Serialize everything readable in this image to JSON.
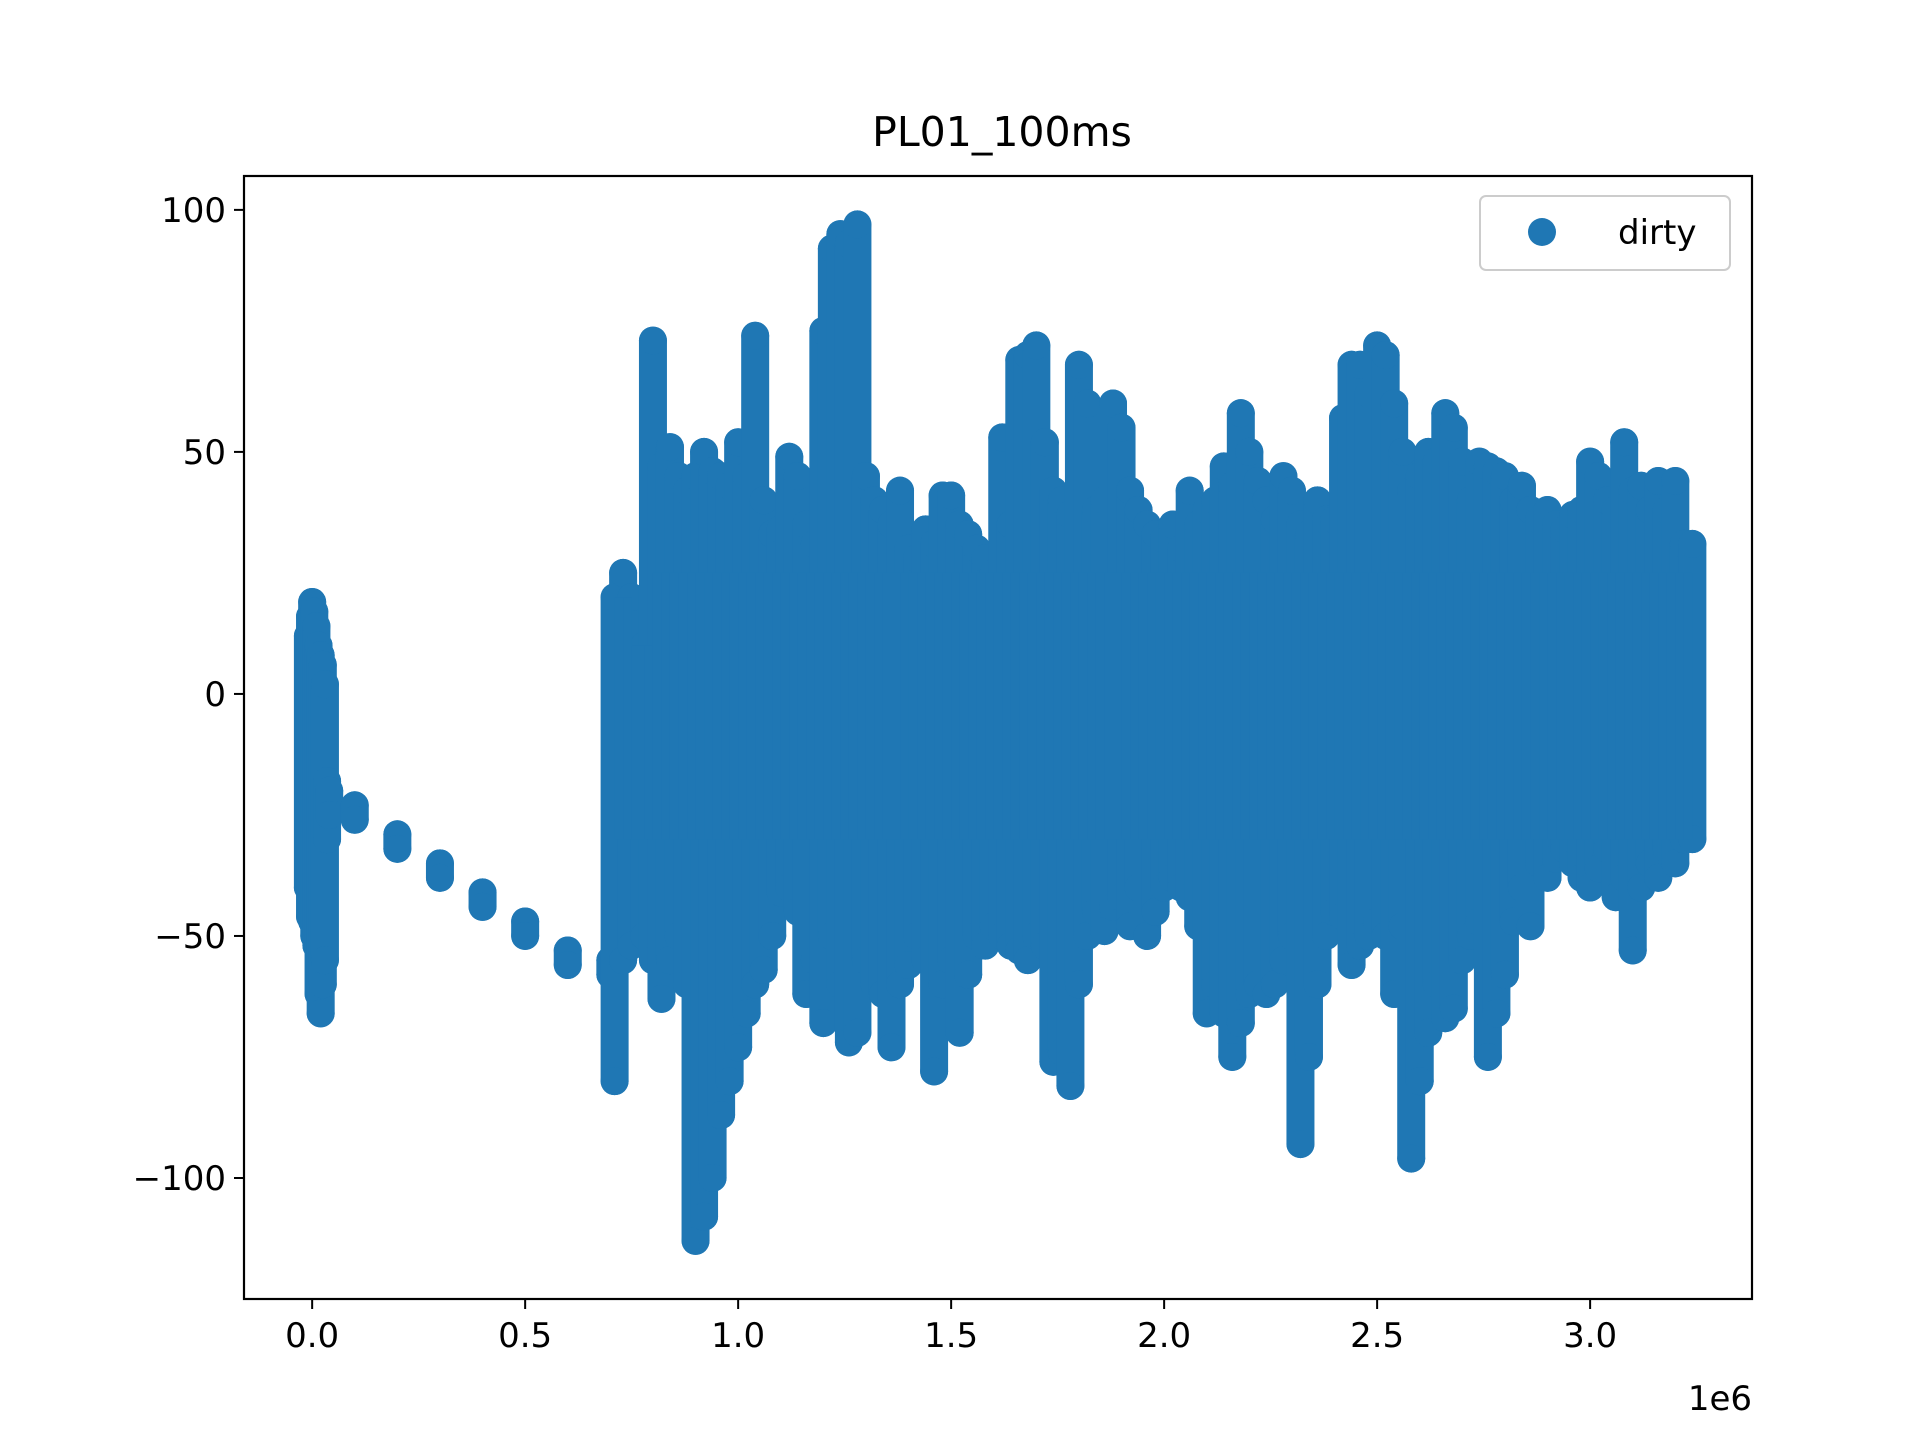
{
  "chart_data": {
    "type": "scatter",
    "title": "PL01_100ms",
    "xlabel": "",
    "ylabel": "",
    "x_offset_label": "1e6",
    "xlim": [
      -0.16,
      3.38
    ],
    "ylim": [
      -125,
      107
    ],
    "x_ticks": [
      0.0,
      0.5,
      1.0,
      1.5,
      2.0,
      2.5,
      3.0
    ],
    "x_tick_labels": [
      "0.0",
      "0.5",
      "1.0",
      "1.5",
      "2.0",
      "2.5",
      "3.0"
    ],
    "y_ticks": [
      -100,
      -50,
      0,
      50,
      100
    ],
    "y_tick_labels": [
      "−100",
      "−50",
      "0",
      "50",
      "100"
    ],
    "grid": false,
    "legend_position": "top-right",
    "series": [
      {
        "name": "dirty",
        "color": "#1f77b4",
        "marker": "circle",
        "x": [
          -0.01,
          -0.005,
          0.0,
          0.005,
          0.01,
          0.015,
          0.02,
          0.025,
          0.03,
          0.035,
          0.04,
          0.1,
          0.2,
          0.3,
          0.4,
          0.5,
          0.6,
          0.7,
          0.71,
          0.73,
          0.75,
          0.78,
          0.8,
          0.82,
          0.84,
          0.86,
          0.88,
          0.9,
          0.92,
          0.94,
          0.96,
          0.98,
          1.0,
          1.02,
          1.04,
          1.06,
          1.08,
          1.1,
          1.12,
          1.14,
          1.16,
          1.18,
          1.2,
          1.22,
          1.24,
          1.26,
          1.28,
          1.3,
          1.32,
          1.34,
          1.36,
          1.38,
          1.4,
          1.42,
          1.44,
          1.46,
          1.48,
          1.5,
          1.52,
          1.54,
          1.56,
          1.58,
          1.6,
          1.62,
          1.64,
          1.66,
          1.68,
          1.7,
          1.72,
          1.74,
          1.76,
          1.78,
          1.8,
          1.82,
          1.84,
          1.86,
          1.88,
          1.9,
          1.92,
          1.94,
          1.96,
          1.98,
          2.0,
          2.02,
          2.04,
          2.06,
          2.08,
          2.1,
          2.12,
          2.14,
          2.16,
          2.18,
          2.2,
          2.22,
          2.24,
          2.26,
          2.28,
          2.3,
          2.32,
          2.34,
          2.36,
          2.38,
          2.4,
          2.42,
          2.44,
          2.46,
          2.48,
          2.5,
          2.52,
          2.54,
          2.56,
          2.58,
          2.6,
          2.62,
          2.64,
          2.66,
          2.68,
          2.7,
          2.72,
          2.74,
          2.76,
          2.78,
          2.8,
          2.82,
          2.84,
          2.86,
          2.88,
          2.9,
          2.92,
          2.94,
          2.96,
          2.98,
          3.0,
          3.02,
          3.04,
          3.06,
          3.08,
          3.1,
          3.12,
          3.14,
          3.16,
          3.18,
          3.2,
          3.22,
          3.24
        ],
        "y_max": [
          12,
          16,
          19,
          17,
          14,
          10,
          8,
          6,
          2,
          -18,
          -20,
          -23,
          -29,
          -35,
          -41,
          -47,
          -53,
          -55,
          20,
          25,
          20,
          10,
          73,
          47,
          51,
          45,
          42,
          45,
          50,
          46,
          45,
          43,
          52,
          45,
          74,
          40,
          33,
          34,
          49,
          45,
          35,
          31,
          75,
          92,
          95,
          93,
          97,
          45,
          40,
          38,
          35,
          42,
          30,
          28,
          34,
          31,
          41,
          41,
          35,
          33,
          30,
          28,
          25,
          53,
          35,
          69,
          70,
          72,
          52,
          42,
          40,
          37,
          68,
          60,
          38,
          40,
          60,
          55,
          42,
          38,
          35,
          33,
          32,
          35,
          30,
          42,
          35,
          38,
          40,
          47,
          43,
          58,
          50,
          44,
          40,
          36,
          45,
          42,
          35,
          33,
          40,
          36,
          36,
          57,
          68,
          68,
          62,
          72,
          70,
          60,
          50,
          42,
          45,
          50,
          48,
          58,
          55,
          48,
          40,
          48,
          47,
          46,
          45,
          40,
          43,
          38,
          36,
          38,
          35,
          34,
          37,
          38,
          48,
          45,
          40,
          38,
          52,
          42,
          43,
          38,
          44,
          38,
          44,
          31,
          31
        ],
        "y_min": [
          -40,
          -46,
          -47,
          -50,
          -52,
          -62,
          -66,
          -60,
          -55,
          -30,
          -25,
          -26,
          -32,
          -38,
          -44,
          -50,
          -56,
          -58,
          -80,
          -55,
          -52,
          -50,
          -55,
          -63,
          -55,
          -50,
          -60,
          -113,
          -108,
          -100,
          -87,
          -80,
          -73,
          -66,
          -60,
          -57,
          -50,
          -41,
          -40,
          -45,
          -62,
          -55,
          -68,
          -50,
          -60,
          -72,
          -70,
          -55,
          -60,
          -62,
          -73,
          -60,
          -56,
          -50,
          -55,
          -78,
          -60,
          -55,
          -70,
          -58,
          -50,
          -52,
          -48,
          -50,
          -52,
          -53,
          -55,
          -50,
          -52,
          -76,
          -74,
          -81,
          -60,
          -50,
          -45,
          -49,
          -44,
          -42,
          -48,
          -40,
          -50,
          -45,
          -40,
          -38,
          -40,
          -42,
          -48,
          -66,
          -60,
          -66,
          -75,
          -68,
          -62,
          -60,
          -62,
          -60,
          -55,
          -50,
          -93,
          -75,
          -60,
          -50,
          -45,
          -46,
          -56,
          -52,
          -50,
          -47,
          -50,
          -62,
          -48,
          -96,
          -80,
          -70,
          -60,
          -67,
          -65,
          -55,
          -50,
          -47,
          -75,
          -66,
          -58,
          -47,
          -40,
          -48,
          -35,
          -38,
          -34,
          -32,
          -35,
          -38,
          -40,
          -36,
          -32,
          -42,
          -38,
          -53,
          -40,
          -35,
          -38,
          -32,
          -35,
          -30,
          -30
        ]
      }
    ]
  }
}
